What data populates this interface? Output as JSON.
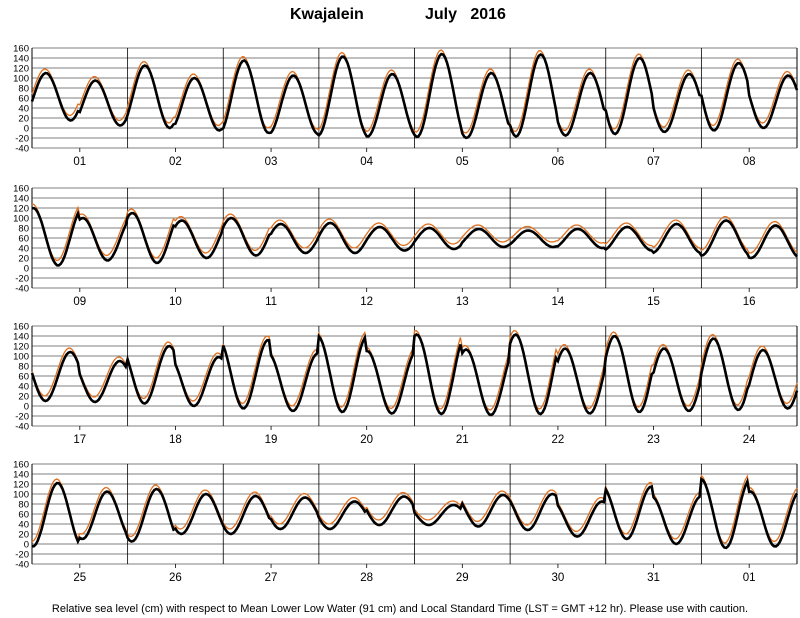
{
  "title": {
    "station": "Kwajalein",
    "month_year": "July   2016"
  },
  "footnote": "Relative sea level (cm) with respect to Mean Lower Low Water (91 cm) and Local Standard Time (LST = GMT +12 hr). Please use with caution.",
  "colors": {
    "observed": "#000000",
    "predicted": "#e07020",
    "grid": "#000000"
  },
  "chart_data": [
    {
      "type": "line",
      "panel": 1,
      "days": [
        "01",
        "02",
        "03",
        "04",
        "05",
        "06",
        "07",
        "08"
      ],
      "ylim": [
        -40,
        160
      ],
      "yticks": [
        -40,
        -20,
        0,
        20,
        40,
        60,
        80,
        100,
        120,
        140,
        160
      ],
      "grid": true,
      "high_water_peaks": [
        [
          110,
          95
        ],
        [
          125,
          100
        ],
        [
          135,
          105
        ],
        [
          143,
          108
        ],
        [
          148,
          110
        ],
        [
          147,
          110
        ],
        [
          140,
          108
        ],
        [
          130,
          105
        ]
      ],
      "low_water_troughs": [
        [
          15,
          5
        ],
        [
          0,
          -5
        ],
        [
          -10,
          -12
        ],
        [
          -15,
          -17
        ],
        [
          -18,
          -20
        ],
        [
          -17,
          -15
        ],
        [
          -12,
          -8
        ],
        [
          -5,
          0
        ]
      ],
      "series": [
        {
          "name": "",
          "values_note": "observed"
        },
        {
          "name": "",
          "values_note": "predicted"
        }
      ]
    },
    {
      "type": "line",
      "panel": 2,
      "days": [
        "09",
        "10",
        "11",
        "12",
        "13",
        "14",
        "15",
        "16"
      ],
      "ylim": [
        -40,
        160
      ],
      "yticks": [
        -40,
        -20,
        0,
        20,
        40,
        60,
        80,
        100,
        120,
        140,
        160
      ],
      "grid": true,
      "high_water_peaks": [
        [
          120,
          100
        ],
        [
          110,
          95
        ],
        [
          100,
          88
        ],
        [
          90,
          82
        ],
        [
          80,
          78
        ],
        [
          75,
          78
        ],
        [
          82,
          88
        ],
        [
          95,
          85
        ]
      ],
      "low_water_troughs": [
        [
          5,
          15
        ],
        [
          10,
          20
        ],
        [
          25,
          30
        ],
        [
          30,
          35
        ],
        [
          38,
          42
        ],
        [
          42,
          40
        ],
        [
          35,
          30
        ],
        [
          25,
          20
        ]
      ]
    },
    {
      "type": "line",
      "panel": 3,
      "days": [
        "17",
        "18",
        "19",
        "20",
        "21",
        "22",
        "23",
        "24"
      ],
      "ylim": [
        -40,
        160
      ],
      "yticks": [
        -40,
        -20,
        0,
        20,
        40,
        60,
        80,
        100,
        120,
        140,
        160
      ],
      "grid": true,
      "high_water_peaks": [
        [
          108,
          90
        ],
        [
          120,
          98
        ],
        [
          132,
          105
        ],
        [
          140,
          110
        ],
        [
          143,
          113
        ],
        [
          143,
          115
        ],
        [
          140,
          115
        ],
        [
          135,
          112
        ]
      ],
      "low_water_troughs": [
        [
          10,
          8
        ],
        [
          5,
          0
        ],
        [
          -5,
          -10
        ],
        [
          -12,
          -15
        ],
        [
          -16,
          -18
        ],
        [
          -16,
          -15
        ],
        [
          -12,
          -10
        ],
        [
          -8,
          -5
        ]
      ]
    },
    {
      "type": "line",
      "panel": 4,
      "days": [
        "25",
        "26",
        "27",
        "28",
        "29",
        "30",
        "31",
        "01"
      ],
      "ylim": [
        -40,
        160
      ],
      "yticks": [
        -40,
        -20,
        0,
        20,
        40,
        60,
        80,
        100,
        120,
        140,
        160
      ],
      "grid": true,
      "high_water_peaks": [
        [
          122,
          105
        ],
        [
          110,
          100
        ],
        [
          96,
          93
        ],
        [
          85,
          95
        ],
        [
          78,
          98
        ],
        [
          100,
          85
        ],
        [
          115,
          95
        ],
        [
          130,
          105
        ]
      ],
      "low_water_troughs": [
        [
          -5,
          10
        ],
        [
          5,
          20
        ],
        [
          20,
          30
        ],
        [
          30,
          38
        ],
        [
          38,
          35
        ],
        [
          28,
          15
        ],
        [
          10,
          0
        ],
        [
          -8,
          -5
        ]
      ]
    }
  ]
}
